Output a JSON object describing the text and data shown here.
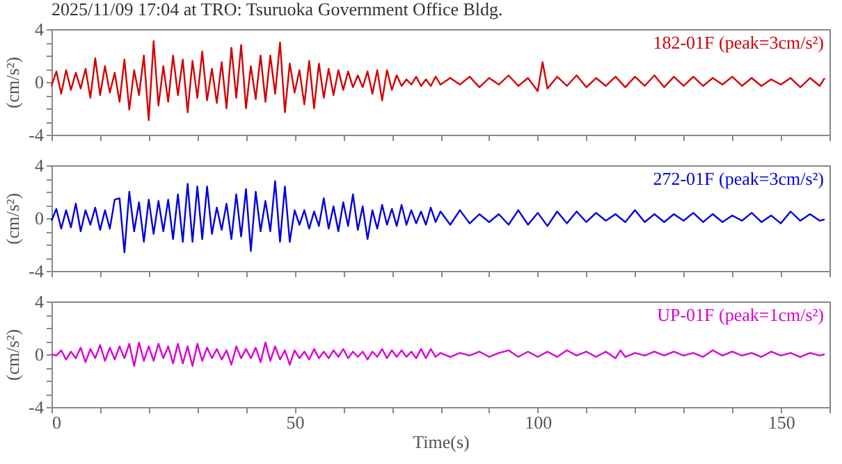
{
  "chart_data": [
    {
      "type": "line",
      "title": "2025/11/09 17:04 at TRO: Tsuruoka Government Office Bldg.",
      "ylabel": "(cm/s²)",
      "xlim": [
        0,
        160
      ],
      "ylim": [
        -4,
        4
      ],
      "tick_labels": "y",
      "xticks": [
        0,
        {
          "value": 10,
          "label": null
        },
        {
          "value": 20,
          "label": null
        },
        {
          "value": 30,
          "label": null
        },
        {
          "value": 40,
          "label": null
        },
        50,
        {
          "value": 60,
          "label": null
        },
        {
          "value": 70,
          "label": null
        },
        {
          "value": 80,
          "label": null
        },
        {
          "value": 90,
          "label": null
        },
        100,
        {
          "value": 110,
          "label": null
        },
        {
          "value": 120,
          "label": null
        },
        {
          "value": 130,
          "label": null
        },
        {
          "value": 140,
          "label": null
        },
        150,
        {
          "value": 160,
          "label": null
        }
      ],
      "yticks": [
        -4,
        {
          "value": -3,
          "label": null
        },
        {
          "value": -2,
          "label": null
        },
        {
          "value": -1,
          "label": null
        },
        0,
        {
          "value": 1,
          "label": null
        },
        {
          "value": 2,
          "label": null
        },
        {
          "value": 3,
          "label": null
        },
        4
      ],
      "series": [
        {
          "name": "182-01F (peak=3cm/s²)",
          "color": "#d40000",
          "x": [
            0,
            1,
            2,
            3,
            4,
            5,
            6,
            7,
            8,
            9,
            10,
            11,
            12,
            13,
            14,
            15,
            16,
            17,
            18,
            19,
            20,
            21,
            22,
            23,
            24,
            25,
            26,
            27,
            28,
            29,
            30,
            31,
            32,
            33,
            34,
            35,
            36,
            37,
            38,
            39,
            40,
            41,
            42,
            43,
            44,
            45,
            46,
            47,
            48,
            49,
            50,
            51,
            52,
            53,
            54,
            55,
            56,
            57,
            58,
            59,
            60,
            61,
            62,
            63,
            64,
            65,
            66,
            67,
            68,
            69,
            70,
            71,
            72,
            73,
            74,
            75,
            76,
            77,
            78,
            79,
            80,
            82,
            84,
            86,
            88,
            90,
            92,
            94,
            96,
            98,
            100,
            101,
            102,
            104,
            106,
            108,
            110,
            112,
            114,
            116,
            118,
            120,
            122,
            124,
            126,
            128,
            130,
            132,
            134,
            136,
            138,
            140,
            142,
            144,
            146,
            148,
            150,
            152,
            154,
            156,
            158,
            159
          ],
          "values": [
            -0.3,
            0.8,
            -0.9,
            0.9,
            -0.6,
            0.7,
            -0.5,
            1.0,
            -1.2,
            1.8,
            -1.0,
            1.2,
            -0.8,
            0.7,
            -1.5,
            1.7,
            -2.1,
            0.9,
            -1.0,
            2.0,
            -2.9,
            3.1,
            -1.8,
            1.2,
            -1.5,
            2.0,
            -1.0,
            1.7,
            -2.3,
            1.6,
            -1.2,
            2.3,
            -1.4,
            1.0,
            -1.6,
            1.5,
            -2.0,
            2.6,
            -1.2,
            2.8,
            -2.0,
            1.2,
            -1.3,
            2.0,
            -1.5,
            2.0,
            -0.9,
            3.0,
            -2.3,
            1.4,
            -0.8,
            0.9,
            -1.7,
            1.6,
            -2.0,
            1.4,
            -1.2,
            1.0,
            -1.0,
            0.9,
            -0.6,
            0.8,
            -0.4,
            0.5,
            -0.4,
            0.8,
            -0.9,
            0.9,
            -1.4,
            0.9,
            -0.6,
            0.5,
            -0.3,
            0.2,
            -0.2,
            0.4,
            -0.3,
            0.2,
            -0.3,
            0.4,
            -0.2,
            0.3,
            -0.2,
            0.4,
            -0.4,
            0.3,
            -0.2,
            0.5,
            -0.3,
            0.3,
            -0.7,
            1.5,
            -0.5,
            0.4,
            -0.3,
            0.5,
            -0.4,
            0.3,
            -0.3,
            0.4,
            -0.4,
            0.4,
            -0.3,
            0.5,
            -0.4,
            0.4,
            -0.3,
            0.4,
            -0.3,
            0.3,
            -0.2,
            0.4,
            -0.3,
            0.3,
            -0.3,
            0.2,
            -0.2,
            0.3,
            -0.4,
            0.3,
            -0.3,
            0.3
          ]
        }
      ]
    },
    {
      "type": "line",
      "ylabel": "(cm/s²)",
      "xlim": [
        0,
        160
      ],
      "ylim": [
        -4,
        4
      ],
      "tick_labels": "y",
      "xticks": [
        0,
        {
          "value": 10,
          "label": null
        },
        {
          "value": 20,
          "label": null
        },
        {
          "value": 30,
          "label": null
        },
        {
          "value": 40,
          "label": null
        },
        50,
        {
          "value": 60,
          "label": null
        },
        {
          "value": 70,
          "label": null
        },
        {
          "value": 80,
          "label": null
        },
        {
          "value": 90,
          "label": null
        },
        100,
        {
          "value": 110,
          "label": null
        },
        {
          "value": 120,
          "label": null
        },
        {
          "value": 130,
          "label": null
        },
        {
          "value": 140,
          "label": null
        },
        150,
        {
          "value": 160,
          "label": null
        }
      ],
      "yticks": [
        -4,
        {
          "value": -3,
          "label": null
        },
        {
          "value": -2,
          "label": null
        },
        {
          "value": -1,
          "label": null
        },
        0,
        {
          "value": 1,
          "label": null
        },
        {
          "value": 2,
          "label": null
        },
        {
          "value": 3,
          "label": null
        },
        4
      ],
      "series": [
        {
          "name": "272-01F (peak=3cm/s²)",
          "color": "#0000e0",
          "x": [
            0,
            1,
            2,
            3,
            4,
            5,
            6,
            7,
            8,
            9,
            10,
            11,
            12,
            13,
            14,
            15,
            16,
            17,
            18,
            19,
            20,
            21,
            22,
            23,
            24,
            25,
            26,
            27,
            28,
            29,
            30,
            31,
            32,
            33,
            34,
            35,
            36,
            37,
            38,
            39,
            40,
            41,
            42,
            43,
            44,
            45,
            46,
            47,
            48,
            49,
            50,
            51,
            52,
            53,
            54,
            55,
            56,
            57,
            58,
            59,
            60,
            61,
            62,
            63,
            64,
            65,
            66,
            67,
            68,
            69,
            70,
            71,
            72,
            73,
            74,
            75,
            76,
            77,
            78,
            79,
            80,
            82,
            84,
            86,
            88,
            90,
            92,
            94,
            96,
            98,
            100,
            102,
            104,
            106,
            108,
            110,
            112,
            114,
            116,
            118,
            120,
            122,
            124,
            126,
            128,
            130,
            132,
            134,
            136,
            138,
            140,
            142,
            144,
            146,
            148,
            150,
            152,
            154,
            156,
            158,
            159
          ],
          "values": [
            -0.2,
            0.7,
            -0.8,
            0.6,
            -0.7,
            1.1,
            -1.0,
            0.6,
            -0.5,
            0.8,
            -0.9,
            0.6,
            -0.8,
            1.4,
            1.5,
            -2.6,
            2.0,
            -1.0,
            1.2,
            -1.8,
            1.4,
            -1.2,
            1.3,
            -1.0,
            1.4,
            -1.6,
            1.8,
            -1.8,
            2.6,
            -1.8,
            2.4,
            -1.6,
            2.4,
            -1.2,
            0.8,
            -0.9,
            1.1,
            -1.6,
            1.8,
            -1.4,
            2.2,
            -2.5,
            2.0,
            -1.0,
            1.3,
            -1.0,
            2.8,
            -1.8,
            2.4,
            -1.8,
            0.6,
            -0.5,
            0.6,
            -0.8,
            0.5,
            -0.6,
            1.5,
            -0.8,
            0.9,
            -1.0,
            1.2,
            -0.6,
            1.8,
            -0.9,
            0.9,
            -1.6,
            0.6,
            -0.8,
            1.0,
            -0.5,
            0.7,
            -0.6,
            1.0,
            -0.5,
            0.6,
            -0.4,
            0.5,
            -0.5,
            0.8,
            -0.3,
            0.5,
            -0.5,
            0.6,
            -0.4,
            0.3,
            -0.3,
            0.3,
            -0.5,
            0.6,
            -0.5,
            0.4,
            -0.6,
            0.5,
            -0.4,
            0.5,
            -0.3,
            0.4,
            -0.2,
            0.3,
            -0.3,
            0.6,
            -0.3,
            0.3,
            -0.3,
            0.3,
            -0.2,
            0.4,
            -0.3,
            0.3,
            -0.3,
            0.2,
            -0.2,
            0.4,
            -0.3,
            0.2,
            -0.4,
            0.5,
            -0.2,
            0.3,
            -0.2,
            -0.1
          ]
        }
      ]
    },
    {
      "type": "line",
      "xlabel": "Time(s)",
      "ylabel": "(cm/s²)",
      "xlim": [
        0,
        160
      ],
      "ylim": [
        -4,
        4
      ],
      "xticks": [
        0,
        {
          "value": 10,
          "label": null
        },
        {
          "value": 20,
          "label": null
        },
        {
          "value": 30,
          "label": null
        },
        {
          "value": 40,
          "label": null
        },
        50,
        {
          "value": 60,
          "label": null
        },
        {
          "value": 70,
          "label": null
        },
        {
          "value": 80,
          "label": null
        },
        {
          "value": 90,
          "label": null
        },
        100,
        {
          "value": 110,
          "label": null
        },
        {
          "value": 120,
          "label": null
        },
        {
          "value": 130,
          "label": null
        },
        {
          "value": 140,
          "label": null
        },
        150,
        {
          "value": 160,
          "label": null
        }
      ],
      "yticks": [
        -4,
        {
          "value": -3,
          "label": null
        },
        {
          "value": -2,
          "label": null
        },
        {
          "value": -1,
          "label": null
        },
        0,
        {
          "value": 1,
          "label": null
        },
        {
          "value": 2,
          "label": null
        },
        {
          "value": 3,
          "label": null
        },
        4
      ],
      "series": [
        {
          "name": "UP-01F (peak=1cm/s²)",
          "color": "#d800d8",
          "x": [
            0,
            1,
            2,
            3,
            4,
            5,
            6,
            7,
            8,
            9,
            10,
            11,
            12,
            13,
            14,
            15,
            16,
            17,
            18,
            19,
            20,
            21,
            22,
            23,
            24,
            25,
            26,
            27,
            28,
            29,
            30,
            31,
            32,
            33,
            34,
            35,
            36,
            37,
            38,
            39,
            40,
            41,
            42,
            43,
            44,
            45,
            46,
            47,
            48,
            49,
            50,
            51,
            52,
            53,
            54,
            55,
            56,
            57,
            58,
            59,
            60,
            61,
            62,
            63,
            64,
            65,
            66,
            67,
            68,
            69,
            70,
            71,
            72,
            73,
            74,
            75,
            76,
            77,
            78,
            79,
            80,
            82,
            84,
            86,
            88,
            90,
            92,
            94,
            96,
            98,
            100,
            102,
            104,
            106,
            108,
            110,
            112,
            114,
            116,
            117,
            118,
            120,
            122,
            124,
            126,
            128,
            130,
            132,
            134,
            136,
            138,
            140,
            142,
            144,
            146,
            148,
            150,
            152,
            154,
            156,
            158,
            159
          ],
          "values": [
            0,
            -0.1,
            0.3,
            -0.4,
            0.2,
            -0.3,
            0.5,
            -0.6,
            0.4,
            -0.3,
            0.7,
            -0.5,
            0.5,
            -0.4,
            0.6,
            -0.3,
            0.8,
            -0.9,
            0.9,
            -0.5,
            0.6,
            -0.5,
            0.8,
            -0.3,
            0.6,
            -0.7,
            0.8,
            -0.7,
            0.6,
            -0.9,
            0.8,
            -0.5,
            0.5,
            -0.3,
            0.4,
            -0.4,
            0.3,
            -0.8,
            0.6,
            -0.3,
            0.4,
            -0.3,
            0.5,
            -0.6,
            0.9,
            -0.5,
            0.6,
            -0.4,
            0.3,
            -0.8,
            0.3,
            -0.3,
            0.2,
            -0.4,
            0.4,
            -0.3,
            0.2,
            -0.3,
            0.3,
            -0.2,
            0.4,
            -0.3,
            0.2,
            -0.2,
            0.2,
            -0.4,
            0.2,
            -0.2,
            0.4,
            -0.3,
            0.3,
            -0.2,
            0.3,
            -0.2,
            0.2,
            -0.3,
            0.4,
            -0.3,
            0.4,
            -0.2,
            0.1,
            -0.2,
            0.1,
            -0.1,
            0.2,
            -0.2,
            0.1,
            0.3,
            -0.2,
            0.2,
            -0.2,
            0.2,
            -0.2,
            0.3,
            -0.1,
            0.2,
            -0.2,
            0.2,
            -0.3,
            0.3,
            -0.2,
            0.1,
            -0.1,
            0.2,
            -0.1,
            0.2,
            -0.1,
            0.1,
            -0.2,
            0.3,
            -0.1,
            0.2,
            -0.1,
            0.1,
            -0.2,
            0.2,
            -0.1,
            0.1,
            -0.2,
            0.1,
            -0.1,
            0
          ]
        }
      ]
    }
  ]
}
